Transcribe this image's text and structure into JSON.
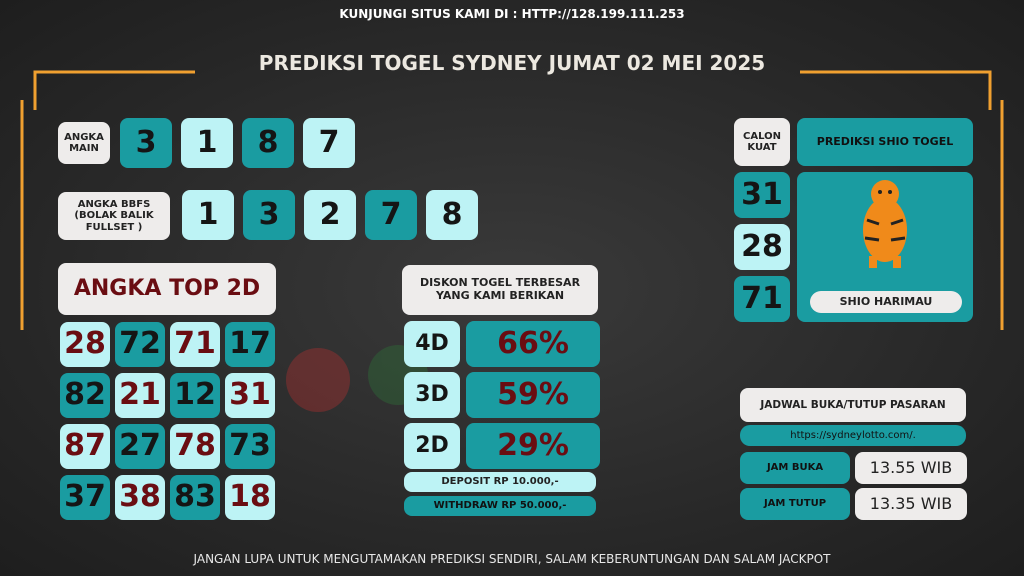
{
  "header": {
    "site": "KUNJUNGI SITUS KAMI DI : HTTP://128.199.111.253",
    "title": "PREDIKSI TOGEL SYDNEY JUMAT 02 MEI 2025"
  },
  "angka_main": {
    "label": "ANGKA MAIN",
    "digits": [
      "3",
      "1",
      "8",
      "7"
    ]
  },
  "angka_bbfs": {
    "label": "ANGKA BBFS (BOLAK BALIK FULLSET )",
    "digits": [
      "1",
      "3",
      "2",
      "7",
      "8"
    ]
  },
  "top_2d": {
    "title": "ANGKA TOP 2D",
    "rows": [
      [
        "28",
        "72",
        "71",
        "17"
      ],
      [
        "82",
        "21",
        "12",
        "31"
      ],
      [
        "87",
        "27",
        "78",
        "73"
      ],
      [
        "37",
        "38",
        "83",
        "18"
      ]
    ]
  },
  "diskon": {
    "title": "DISKON TOGEL TERBESAR YANG KAMI BERIKAN",
    "rows": [
      {
        "label": "4D",
        "value": "66%"
      },
      {
        "label": "3D",
        "value": "59%"
      },
      {
        "label": "2D",
        "value": "29%"
      }
    ],
    "deposit": "DEPOSIT RP 10.000,-",
    "withdraw": "WITHDRAW RP 50.000,-"
  },
  "calon_kuat": {
    "label": "CALON KUAT",
    "numbers": [
      "31",
      "28",
      "71"
    ]
  },
  "shio": {
    "title": "PREDIKSI SHIO TOGEL",
    "name": "SHIO HARIMAU"
  },
  "jadwal": {
    "title": "JADWAL BUKA/TUTUP PASARAN",
    "url": "https://sydneylotto.com/.",
    "buka_label": "JAM BUKA",
    "buka": "13.55 WIB",
    "tutup_label": "JAM TUTUP",
    "tutup": "13.35 WIB"
  },
  "footer": "JANGAN LUPA UNTUK MENGUTAMAKAN PREDIKSI SENDIRI, SALAM KEBERUNTUNGAN DAN SALAM JACKPOT"
}
